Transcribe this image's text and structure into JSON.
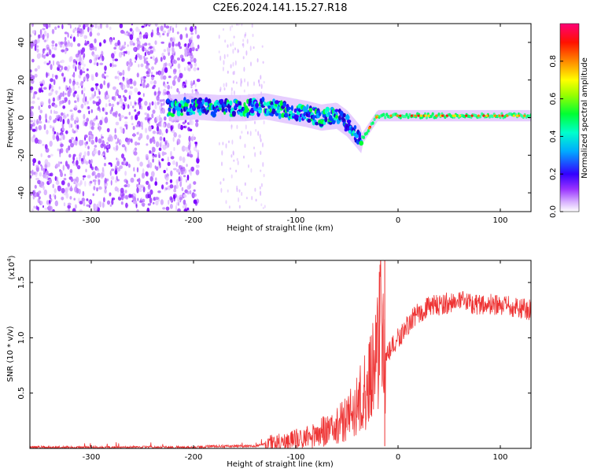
{
  "title": "C2E6.2024.141.15.27.R18",
  "chart_data": [
    {
      "type": "heatmap",
      "name": "spectrogram",
      "xlabel": "Height of straight line (km)",
      "ylabel": "Frequency (Hz)",
      "xlim": [
        -360,
        130
      ],
      "ylim": [
        -50,
        50
      ],
      "xticks": [
        -300,
        -200,
        -100,
        0,
        100
      ],
      "yticks": [
        -40,
        -20,
        0,
        20,
        40
      ],
      "colorbar": {
        "label": "Normalized spectral amplitude",
        "range": [
          0,
          1
        ],
        "ticks": [
          "0.0",
          "0.2",
          "0.4",
          "0.6",
          "0.8"
        ],
        "tick_values": [
          0,
          0.2,
          0.4,
          0.6,
          0.8
        ],
        "colormap": "rainbow (white-purple-blue-cyan-green-yellow-red-magenta)"
      },
      "regions": [
        {
          "x_from": -360,
          "x_to": -195,
          "description": "scattered purple noise across all frequencies"
        },
        {
          "x_from": -175,
          "x_to": -130,
          "description": "faint purple vertical streaks"
        },
        {
          "x_from": -225,
          "x_to": -35,
          "description": "main signal band near 0 to 10 Hz, dipping to about -15 Hz near -40 km"
        },
        {
          "x_from": -35,
          "x_to": 130,
          "description": "narrow signal band near 1 Hz, green with red/yellow spots"
        }
      ],
      "ridge": [
        {
          "x": -225,
          "y": 5
        },
        {
          "x": -200,
          "y": 6
        },
        {
          "x": -175,
          "y": 5
        },
        {
          "x": -150,
          "y": 5
        },
        {
          "x": -130,
          "y": 6
        },
        {
          "x": -110,
          "y": 4
        },
        {
          "x": -90,
          "y": 2
        },
        {
          "x": -75,
          "y": 0
        },
        {
          "x": -60,
          "y": 1
        },
        {
          "x": -50,
          "y": -3
        },
        {
          "x": -42,
          "y": -8
        },
        {
          "x": -36,
          "y": -12
        },
        {
          "x": -20,
          "y": 1
        },
        {
          "x": 0,
          "y": 1
        },
        {
          "x": 50,
          "y": 1
        },
        {
          "x": 130,
          "y": 1
        }
      ]
    },
    {
      "type": "line",
      "name": "snr",
      "xlabel": "Height of straight line (km)",
      "ylabel": "SNR (10 * v/v)",
      "scale_label": "(x10",
      "scale_exponent": "4",
      "xlim": [
        -360,
        130
      ],
      "ylim": [
        0,
        1.7
      ],
      "xticks": [
        -300,
        -200,
        -100,
        0,
        100
      ],
      "yticks": [
        0.5,
        1.0,
        1.5
      ],
      "ytick_labels": [
        "0.5",
        "1.0",
        "1.5"
      ],
      "color": "#ee3333",
      "series": [
        {
          "x": [
            -360,
            -300,
            -250,
            -200,
            -180,
            -160,
            -140,
            -125,
            -110,
            -100,
            -90,
            -80,
            -70,
            -60,
            -50,
            -40,
            -30,
            -25,
            -20,
            -16,
            -14,
            -12,
            -10,
            -5,
            0,
            5,
            10,
            15,
            20,
            25,
            30,
            40,
            50,
            60,
            70,
            80,
            90,
            100,
            110,
            120,
            130
          ],
          "values": [
            0.01,
            0.01,
            0.01,
            0.01,
            0.02,
            0.02,
            0.02,
            0.05,
            0.06,
            0.08,
            0.1,
            0.13,
            0.16,
            0.2,
            0.28,
            0.4,
            0.55,
            0.75,
            0.9,
            1.25,
            0.9,
            0.75,
            0.85,
            0.92,
            1.0,
            1.05,
            1.12,
            1.18,
            1.22,
            1.25,
            1.28,
            1.3,
            1.32,
            1.32,
            1.32,
            1.3,
            1.3,
            1.28,
            1.28,
            1.27,
            1.25
          ]
        }
      ]
    }
  ]
}
